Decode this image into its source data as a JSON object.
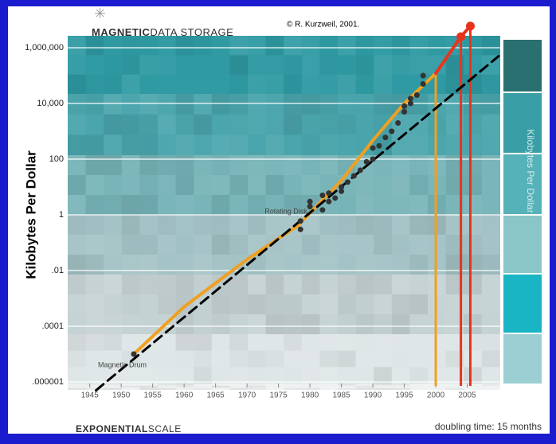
{
  "chart_data": {
    "type": "scatter",
    "credit": "© R. Kurzweil, 2001.",
    "title_strong": "MAGNETIC",
    "title": "DATA STORAGE",
    "y_label": "Kilobytes Per Dollar",
    "side_label": "Kilobytes Per Dollar",
    "footer_strong": "EXPONENTIAL",
    "footer": "SCALE",
    "note": "doubling time: 15 months",
    "log_y": true,
    "xlim": [
      1942,
      2010
    ],
    "ylim": [
      1e-06,
      10000000
    ],
    "xticks": [
      1945,
      1950,
      1955,
      1960,
      1965,
      1970,
      1975,
      1980,
      1985,
      1990,
      1995,
      2000,
      2005
    ],
    "yticks": [
      {
        "value": 1e-06,
        "label": ".000001"
      },
      {
        "value": 0.0001,
        "label": ".0001"
      },
      {
        "value": 0.01,
        "label": ".01"
      },
      1,
      100,
      {
        "value": 10000,
        "label": "10,000"
      },
      {
        "value": 1000000,
        "label": "1,000,000"
      }
    ],
    "series": [
      {
        "name": "Magnetic Drum",
        "type": "scatter",
        "color": "#333333",
        "x": [
          1952
        ],
        "values": [
          1e-05
        ]
      },
      {
        "name": "Rotating Disk",
        "type": "scatter",
        "color": "#333333",
        "x": [
          1978.5,
          1978.5,
          1980,
          1980,
          1982,
          1982,
          1983,
          1983,
          1984,
          1985,
          1985,
          1986,
          1987,
          1988,
          1989,
          1990,
          1990,
          1991,
          1992,
          1993,
          1994,
          1995,
          1995,
          1996,
          1996,
          1997,
          1998,
          1998
        ],
        "values": [
          0.3,
          0.6,
          2,
          3,
          1.5,
          5,
          3,
          6,
          4,
          7,
          10,
          15,
          25,
          40,
          80,
          100,
          250,
          300,
          600,
          1000,
          2000,
          5000,
          8000,
          10000,
          15000,
          20000,
          50000,
          100000
        ]
      },
      {
        "type": "line",
        "color": "#f0a020",
        "drop": true,
        "x": [
          1952,
          1960,
          1970,
          1978,
          1985,
          1990,
          1995,
          2000
        ],
        "values": [
          1e-05,
          0.0005,
          0.025,
          0.4,
          17,
          470,
          10000,
          120000
        ]
      },
      {
        "type": "line",
        "color": "#e8341c",
        "drop": true,
        "markers": true,
        "x": [
          2000,
          2004,
          2005.5
        ],
        "values": [
          120000,
          2500000,
          6000000
        ]
      },
      {
        "type": "line",
        "color": "#000000",
        "dashed": true,
        "x": [
          1946,
          2010
        ],
        "values": [
          5e-07,
          500000
        ]
      }
    ]
  }
}
